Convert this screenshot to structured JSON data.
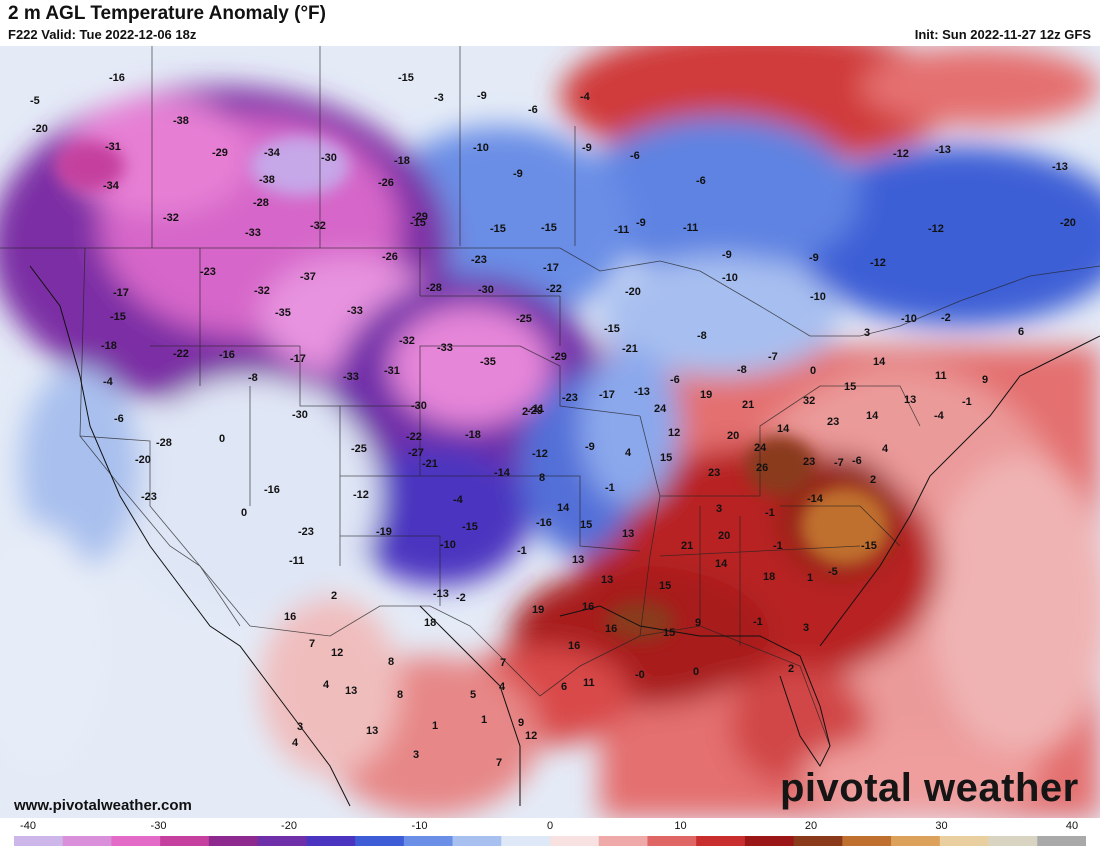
{
  "header": {
    "title": "2 m AGL Temperature Anomaly (°F)",
    "valid": "F222 Valid: Tue 2022-12-06 18z",
    "init": "Init: Sun 2022-11-27 12z GFS"
  },
  "footer": {
    "website": "www.pivotalweather.com",
    "brand": "pivotal weather"
  },
  "colorbar": {
    "ticks": [
      "-40",
      "-30",
      "-20",
      "-10",
      "0",
      "10",
      "20",
      "30",
      "40"
    ],
    "colors": [
      "#cdb6ea",
      "#d98fd9",
      "#e46ac8",
      "#c53f9e",
      "#8e2a8f",
      "#6f2fa8",
      "#4b35c0",
      "#3d5cd6",
      "#6b8fe6",
      "#a8c0f0",
      "#dfe8f7",
      "#f7e1e1",
      "#efa9a9",
      "#e06666",
      "#c92e2e",
      "#9b1717",
      "#8a3a1b",
      "#c0702e",
      "#dca15a",
      "#e9cfa0",
      "#d9d4c2",
      "#a9a9a9"
    ]
  },
  "map": {
    "labels": [
      "-16",
      "-15",
      "-5",
      "-4",
      "-6",
      "-3",
      "-9",
      "-20",
      "-38",
      "-31",
      "-29",
      "-34",
      "-30",
      "-18",
      "-10",
      "-9",
      "-6",
      "-9",
      "-12",
      "-13",
      "-13",
      "-34",
      "-38",
      "-26",
      "-6",
      "-9",
      "-15",
      "-32",
      "-28",
      "-29",
      "-15",
      "-15",
      "-11",
      "-11",
      "-12",
      "-20",
      "-33",
      "-32",
      "-26",
      "-23",
      "-17",
      "-9",
      "-10",
      "-9",
      "-12",
      "-17",
      "-37",
      "-28",
      "-30",
      "-22",
      "-20",
      "-10",
      "-10",
      "-2",
      "6",
      "-23",
      "-15",
      "-32",
      "-35",
      "-33",
      "-25",
      "-15",
      "3",
      "-18",
      "-22",
      "-16",
      "-17",
      "-32",
      "-33",
      "-35",
      "-29",
      "-21",
      "-8",
      "-8",
      "-7",
      "0",
      "14",
      "11",
      "9",
      "-4",
      "-8",
      "-33",
      "-31",
      "-30",
      "-29",
      "-23",
      "-17",
      "-13",
      "-6",
      "19",
      "32",
      "15",
      "13",
      "-1",
      "-6",
      "0",
      "-30",
      "-27",
      "-11",
      "2",
      "24",
      "21",
      "14",
      "23",
      "14",
      "-4",
      "-20",
      "-28",
      "-22",
      "-18",
      "-12",
      "-9",
      "4",
      "12",
      "20",
      "24",
      "23",
      "-6",
      "4",
      "-23",
      "-25",
      "-21",
      "-14",
      "8",
      "-1",
      "15",
      "23",
      "26",
      "-7",
      "2",
      "-16",
      "-12",
      "-4",
      "14",
      "15",
      "13",
      "3",
      "-1",
      "-14",
      "0",
      "-23",
      "-19",
      "-15",
      "-16",
      "-10",
      "-1",
      "13",
      "13",
      "21",
      "20",
      "-1",
      "-15",
      "-11",
      "-13",
      "-2",
      "19",
      "16",
      "15",
      "14",
      "18",
      "1",
      "-5",
      "2",
      "16",
      "18",
      "16",
      "16",
      "15",
      "9",
      "-1",
      "3",
      "12",
      "7",
      "8",
      "7",
      "11",
      "-0",
      "0",
      "2",
      "4",
      "13",
      "8",
      "5",
      "4",
      "6",
      "3",
      "13",
      "1",
      "1",
      "9",
      "12",
      "4",
      "3",
      "7"
    ]
  }
}
